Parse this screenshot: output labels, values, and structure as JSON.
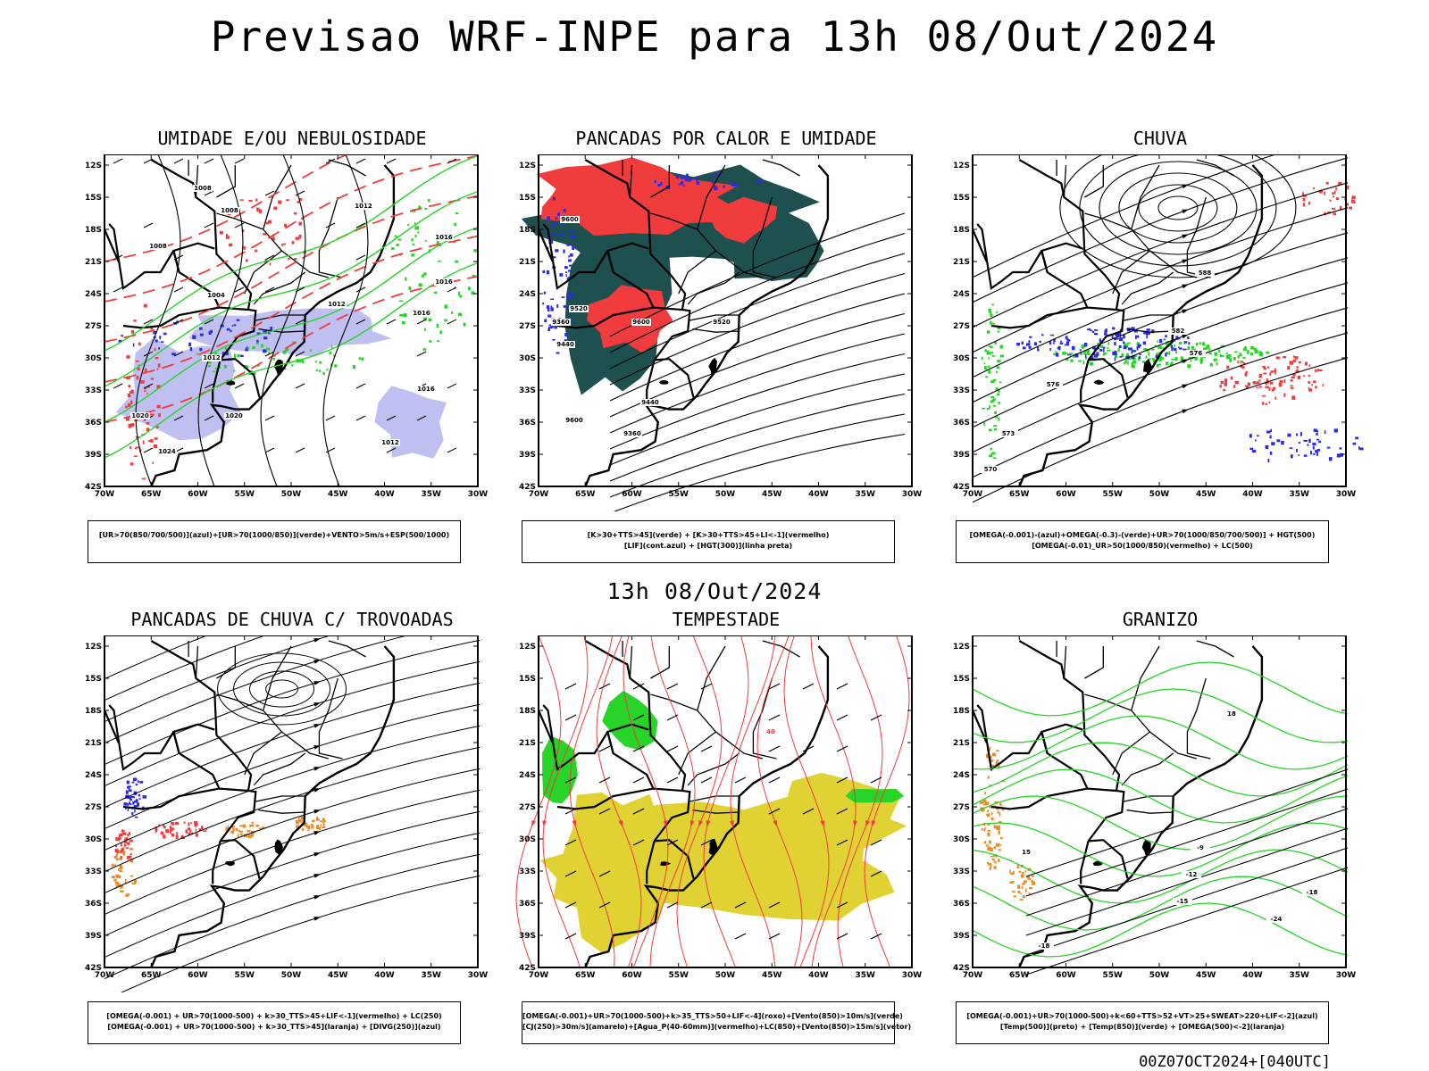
{
  "main_title": "Previsao WRF-INPE  para 13h 08/Out/2024",
  "mid_title": "13h 08/Out/2024",
  "footer": "00Z07OCT2024+[040UTC]",
  "axes": {
    "lat_labels": [
      "12S",
      "15S",
      "18S",
      "21S",
      "24S",
      "27S",
      "30S",
      "33S",
      "36S",
      "39S",
      "42S"
    ],
    "lon_labels": [
      "70W",
      "65W",
      "60W",
      "55W",
      "50W",
      "45W",
      "40W",
      "35W",
      "30W"
    ]
  },
  "colors": {
    "red": "#f03c3c",
    "green": "#27d427",
    "blue": "#2a2ae8",
    "lavender": "#b4b4f0",
    "darkteal": "#1e5050",
    "yellow": "#e0d232",
    "orange": "#eb8c28",
    "black": "#000000"
  },
  "panels": [
    {
      "title": "UMIDADE E/OU NEBULOSIDADE",
      "legend": [
        "[UR>70(850/700/500)](azul)+[UR>70(1000/850)](verde)+VENTO>5m/s+ESP(500/1000)"
      ],
      "contour_labels": [
        "1008",
        "1008",
        "1012",
        "1016",
        "1008",
        "1016",
        "1004",
        "1012",
        "1016",
        "1012",
        "1016",
        "1020",
        "1024",
        "1012",
        "1020"
      ]
    },
    {
      "title": "PANCADAS POR CALOR E UMIDADE",
      "legend": [
        "[K>30+TTS>45](verde) + [K>30+TTS>45+LI<-1](vermelho)",
        "[LIF](cont.azul) + [HGT(300)](linha preta)"
      ],
      "contour_labels": [
        "9600",
        "9520",
        "9360",
        "9440",
        "9600",
        "9520",
        "9440",
        "9360",
        "9600"
      ]
    },
    {
      "title": "CHUVA",
      "legend": [
        "[OMEGA(-0.001)-(azul)+OMEGA(-0.3)-(verde)+UR>70(1000/850/700/500)] + HGT(500)",
        "[OMEGA(-0.01)_UR>50(1000/850)(vermelho) + LC(500)"
      ],
      "contour_labels": [
        "588",
        "582",
        "576",
        "576",
        "573",
        "570"
      ]
    },
    {
      "title": "PANCADAS DE CHUVA C/ TROVOADAS",
      "legend": [
        "[OMEGA(-0.001) + UR>70(1000-500) + k>30_TTS>45+LIF<-1](vermelho) + LC(250)",
        "[OMEGA(-0.001) + UR>70(1000-500) + k>30_TTS>45](laranja) + [DIVG(250)](azul)"
      ],
      "contour_labels": []
    },
    {
      "title": "TEMPESTADE",
      "legend": [
        "[OMEGA(-0.001)+UR>70(1000-500)+k>35_TTS>50+LIF<-4](roxo)+[Vento(850)>10m/s](verde)",
        "[CJ(250)>30m/s](amarelo)+[Agua_P(40-60mm)](vermelho)+LC(850)+[Vento(850)>15m/s](vetor)"
      ],
      "contour_labels": [
        "40"
      ]
    },
    {
      "title": "GRANIZO",
      "legend": [
        "[OMEGA(-0.001)+UR>70(1000-500)+k<60+TTS>52+VT>25+SWEAT>220+LIF<-2](azul)",
        "[Temp(500)](preto) + [Temp(850)](verde) + [OMEGA(500)<-2](laranja)"
      ],
      "contour_labels": [
        "-18",
        "-15",
        "-12",
        "-9",
        "-24",
        "-18",
        "15",
        "18"
      ]
    }
  ]
}
